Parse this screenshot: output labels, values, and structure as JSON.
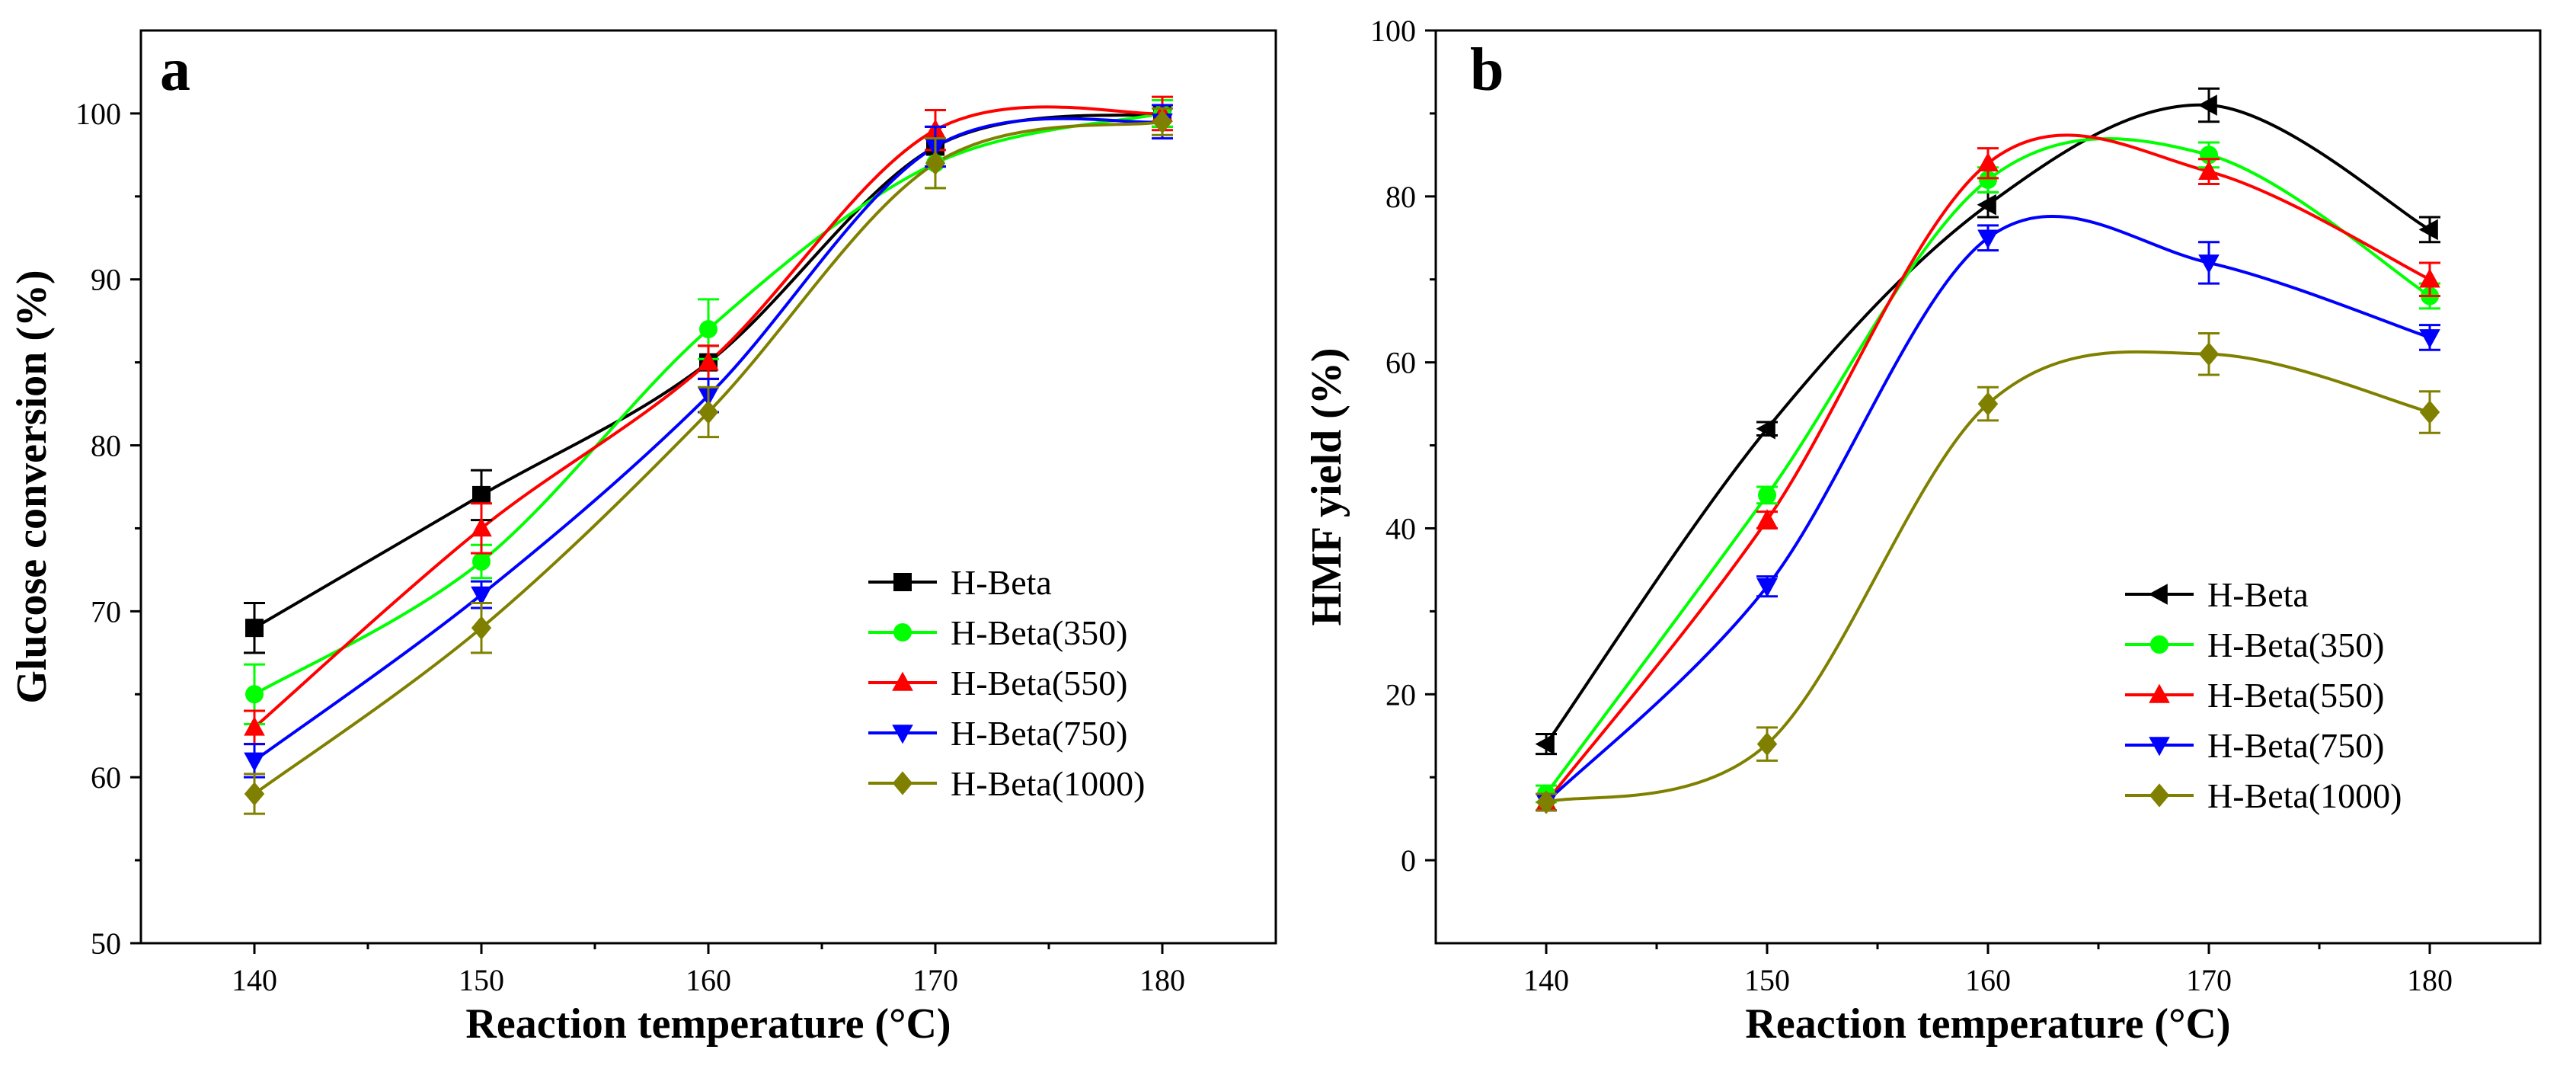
{
  "chart_data": [
    {
      "type": "line",
      "panel_label": "a",
      "xlabel": "Reaction temperature (°C)",
      "ylabel": "Glucose conversion (%)",
      "xlim": [
        135,
        185
      ],
      "ylim": [
        50,
        105
      ],
      "x": [
        140,
        150,
        160,
        170,
        180
      ],
      "x_ticks": [
        140,
        150,
        160,
        170,
        180
      ],
      "y_ticks": [
        50,
        60,
        70,
        80,
        90,
        100
      ],
      "legend_position": "bottom-right",
      "grid": false,
      "series": [
        {
          "name": "H-Beta",
          "color": "#000000",
          "marker": "square",
          "values": [
            69,
            77,
            85,
            98,
            100
          ],
          "errors": [
            1.5,
            1.5,
            1.0,
            1.2,
            0.8
          ]
        },
        {
          "name": "H-Beta(350)",
          "color": "#00ff00",
          "marker": "circle",
          "values": [
            65,
            73,
            87,
            97,
            100
          ],
          "errors": [
            1.8,
            1.0,
            1.8,
            1.5,
            0.8
          ]
        },
        {
          "name": "H-Beta(550)",
          "color": "#ff0000",
          "marker": "triangle-up",
          "values": [
            63,
            75,
            85,
            99,
            100
          ],
          "errors": [
            1.0,
            1.5,
            1.0,
            1.2,
            1.0
          ]
        },
        {
          "name": "H-Beta(750)",
          "color": "#0000ff",
          "marker": "triangle-down",
          "values": [
            61,
            71,
            83,
            98,
            99.5
          ],
          "errors": [
            1.0,
            0.8,
            1.0,
            1.2,
            1.0
          ]
        },
        {
          "name": "H-Beta(1000)",
          "color": "#808000",
          "marker": "diamond",
          "values": [
            59,
            69,
            82,
            97,
            99.5
          ],
          "errors": [
            1.2,
            1.5,
            1.5,
            1.5,
            0.8
          ]
        }
      ]
    },
    {
      "type": "line",
      "panel_label": "b",
      "xlabel": "Reaction temperature (°C)",
      "ylabel": "HMF yield (%)",
      "xlim": [
        135,
        185
      ],
      "ylim": [
        -10,
        100
      ],
      "x": [
        140,
        150,
        160,
        170,
        180
      ],
      "x_ticks": [
        140,
        150,
        160,
        170,
        180
      ],
      "y_ticks": [
        0,
        20,
        40,
        60,
        80,
        100
      ],
      "legend_position": "bottom-right",
      "grid": false,
      "series": [
        {
          "name": "H-Beta",
          "color": "#000000",
          "marker": "triangle-left",
          "values": [
            14,
            52,
            79,
            91,
            76
          ],
          "errors": [
            1.2,
            0.8,
            1.5,
            2.0,
            1.5
          ]
        },
        {
          "name": "H-Beta(350)",
          "color": "#00ff00",
          "marker": "circle",
          "values": [
            8,
            44,
            82,
            85,
            68
          ],
          "errors": [
            1.0,
            1.0,
            1.5,
            1.5,
            1.5
          ]
        },
        {
          "name": "H-Beta(550)",
          "color": "#ff0000",
          "marker": "triangle-up",
          "values": [
            7,
            41,
            84,
            83,
            70
          ],
          "errors": [
            1.0,
            1.0,
            1.8,
            1.5,
            2.0
          ]
        },
        {
          "name": "H-Beta(750)",
          "color": "#0000ff",
          "marker": "triangle-down",
          "values": [
            7,
            33,
            75,
            72,
            63
          ],
          "errors": [
            1.0,
            1.2,
            1.5,
            2.5,
            1.5
          ]
        },
        {
          "name": "H-Beta(1000)",
          "color": "#808000",
          "marker": "diamond",
          "values": [
            7,
            14,
            55,
            61,
            54
          ],
          "errors": [
            1.0,
            2.0,
            2.0,
            2.5,
            2.5
          ]
        }
      ]
    }
  ]
}
